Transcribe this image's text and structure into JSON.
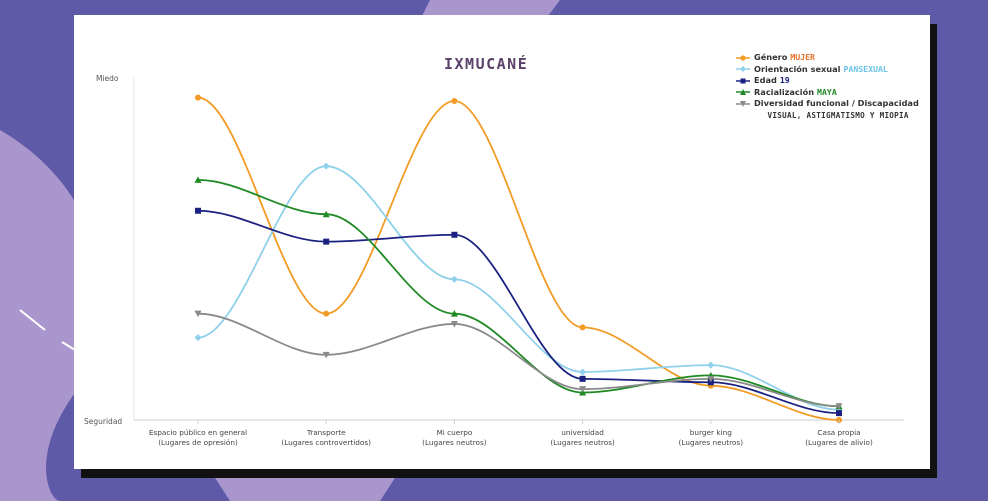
{
  "chart_data": {
    "type": "line",
    "title": "IXMUCANÉ",
    "xlabel": "",
    "ylabel": "",
    "y_axis_labels": {
      "top": "Miedo",
      "bottom": "Seguridad"
    },
    "ylim": [
      0,
      10
    ],
    "grid": false,
    "smooth": true,
    "legend_position": "top-right",
    "categories": [
      [
        "Espacio público en general",
        "(Lugares de opresión)"
      ],
      [
        "Transporte",
        "(Lugares controvertidos)"
      ],
      [
        "Mi cuerpo",
        "(Lugares neutros)"
      ],
      [
        "universidad",
        "(Lugares neutros)"
      ],
      [
        "burger king",
        "(Lugares neutros)"
      ],
      [
        "Casa propia",
        "(Lugares de alivio)"
      ]
    ],
    "series": [
      {
        "name": "Género",
        "highlight": "MUJER",
        "color": "#f29b25",
        "highlight_color": "#e8722a",
        "marker": "circle",
        "values": [
          9.4,
          3.1,
          9.3,
          2.7,
          1.0,
          0.0
        ]
      },
      {
        "name": "Orientación sexual",
        "highlight": "PANSEXUAL",
        "color": "#8fd0ea",
        "highlight_color": "#6cc3e6",
        "marker": "diamond",
        "values": [
          2.4,
          7.4,
          4.1,
          1.4,
          1.6,
          0.3
        ]
      },
      {
        "name": "Edad",
        "highlight": "19",
        "color": "#1b2180",
        "highlight_color": "#1b2180",
        "marker": "square",
        "values": [
          6.1,
          5.2,
          5.4,
          1.2,
          1.1,
          0.2
        ]
      },
      {
        "name": "Racialización",
        "highlight": "MAYA",
        "color": "#1f8a24",
        "highlight_color": "#1f8a24",
        "marker": "triangle",
        "values": [
          7.0,
          6.0,
          3.1,
          0.8,
          1.3,
          0.4
        ]
      },
      {
        "name": "Diversidad funcional / Discapacidad",
        "highlight": "",
        "color": "#8a8a8a",
        "highlight_color": "#555555",
        "marker": "triangle-down",
        "values": [
          3.1,
          1.9,
          2.8,
          0.9,
          1.2,
          0.4
        ]
      }
    ],
    "legend_subtitle": "VISUAL, ASTIGMATISMO Y MIOPIA"
  }
}
